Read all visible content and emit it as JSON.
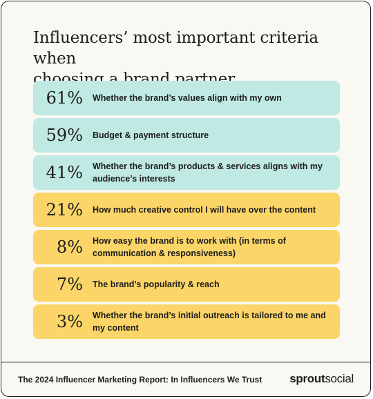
{
  "title_line1": "Influencers’ most important criteria when",
  "title_line2": "choosing a brand partner",
  "rows": [
    {
      "pct": "61%",
      "label": "Whether the brand’s values align with my own",
      "color": "#bfe9e2"
    },
    {
      "pct": "59%",
      "label": "Budget & payment structure",
      "color": "#bfe9e2"
    },
    {
      "pct": "41%",
      "label": "Whether the brand’s products & services aligns with my audience’s interests",
      "color": "#bfe9e2"
    },
    {
      "pct": "21%",
      "label": "How much creative control I will have over the content",
      "color": "#fbd568"
    },
    {
      "pct": "8%",
      "label": "How easy the brand is to work with (in terms of communication & responsiveness)",
      "color": "#fbd568"
    },
    {
      "pct": "7%",
      "label": "The brand’s popularity & reach",
      "color": "#fbd568"
    },
    {
      "pct": "3%",
      "label": "Whether the brand’s initial outreach is tailored to me and my content",
      "color": "#fbd568"
    }
  ],
  "footer": {
    "report_title": "The 2024 Influencer Marketing Report: In Influencers We Trust",
    "logo_part1": "sprout",
    "logo_part2": "social"
  }
}
